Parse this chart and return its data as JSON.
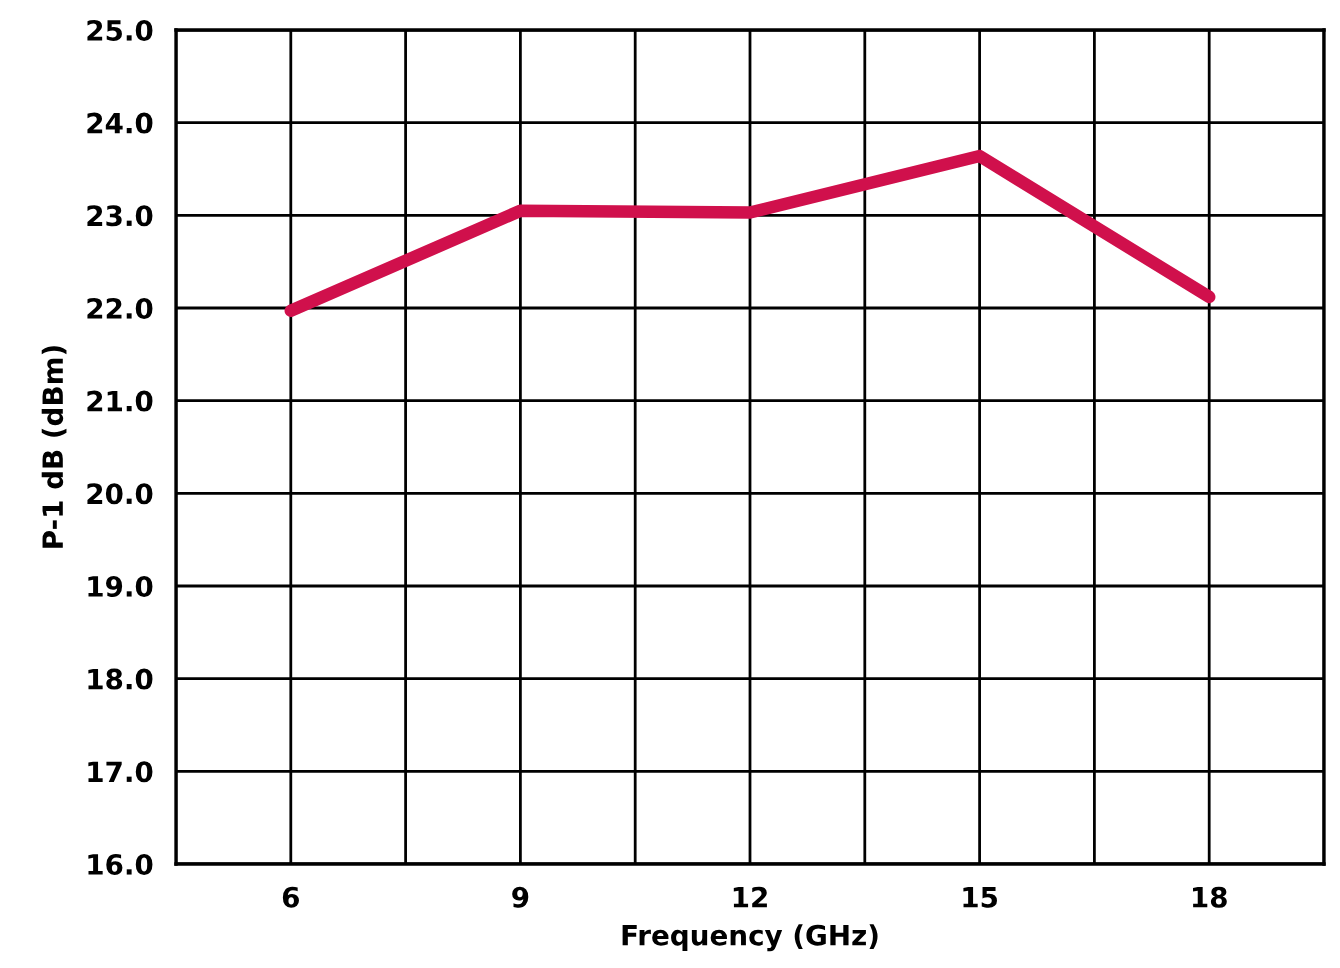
{
  "chart_data": {
    "type": "line",
    "xlabel": "Frequency (GHz)",
    "ylabel": "P-1 dB (dBm)",
    "x": [
      6,
      9,
      12,
      15,
      18
    ],
    "series": [
      {
        "color": "#d0104c",
        "values": [
          21.97,
          23.05,
          23.03,
          23.64,
          22.12
        ]
      }
    ],
    "xlim": [
      4.5,
      19.5
    ],
    "xticks": [
      {
        "value": 4.5,
        "label": null
      },
      6,
      {
        "value": 7.5,
        "label": null
      },
      9,
      {
        "value": 10.5,
        "label": null
      },
      12,
      {
        "value": 13.5,
        "label": null
      },
      15,
      {
        "value": 16.5,
        "label": null
      },
      18,
      {
        "value": 19.5,
        "label": null
      }
    ],
    "ylim": [
      16,
      25
    ],
    "yticks": [
      {
        "value": 16,
        "label": "16.0"
      },
      {
        "value": 17,
        "label": "17.0"
      },
      {
        "value": 18,
        "label": "18.0"
      },
      {
        "value": 19,
        "label": "19.0"
      },
      {
        "value": 20,
        "label": "20.0"
      },
      {
        "value": 21,
        "label": "21.0"
      },
      {
        "value": 22,
        "label": "22.0"
      },
      {
        "value": 23,
        "label": "23.0"
      },
      {
        "value": 24,
        "label": "24.0"
      },
      {
        "value": 25,
        "label": "25.0"
      }
    ],
    "grid": true,
    "marker": "none",
    "line_style": "solid"
  }
}
